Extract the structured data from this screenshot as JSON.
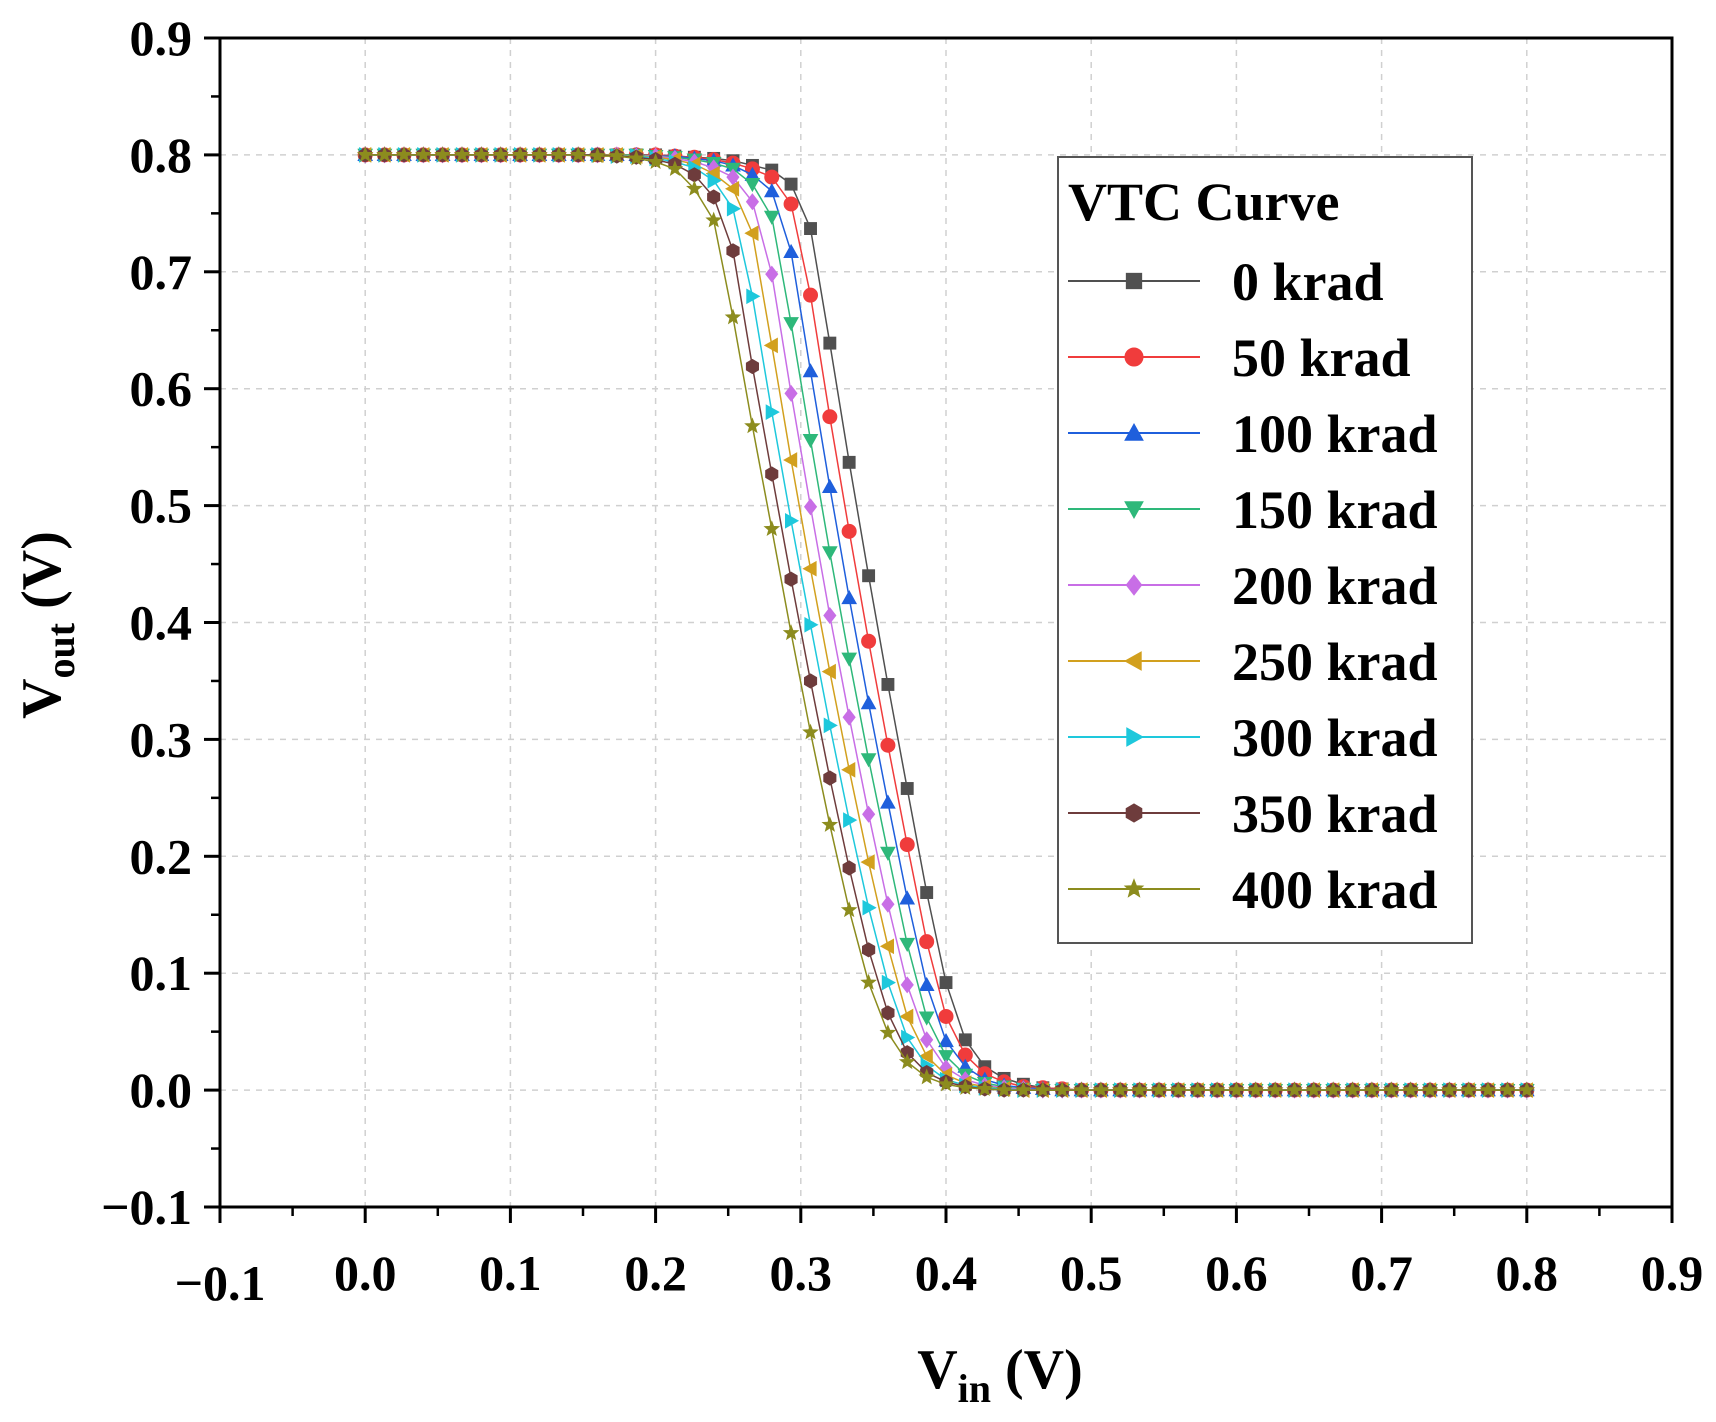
{
  "chart_data": {
    "type": "line",
    "title": "",
    "xlabel": {
      "main": "V",
      "sub": "in",
      "unit": "(V)"
    },
    "ylabel": {
      "main": "V",
      "sub": "out",
      "unit": "(V)"
    },
    "xlim": [
      -0.1,
      0.9
    ],
    "ylim": [
      -0.1,
      0.9
    ],
    "xticks": [
      -0.1,
      0.0,
      0.1,
      0.2,
      0.3,
      0.4,
      0.5,
      0.6,
      0.7,
      0.8,
      0.9
    ],
    "xtick_labels": [
      "−0.1",
      "0.0",
      "0.1",
      "0.2",
      "0.3",
      "0.4",
      "0.5",
      "0.6",
      "0.7",
      "0.8",
      "0.9"
    ],
    "yticks": [
      -0.1,
      0.0,
      0.1,
      0.2,
      0.3,
      0.4,
      0.5,
      0.6,
      0.7,
      0.8,
      0.9
    ],
    "ytick_labels": [
      "−0.1",
      "0.0",
      "0.1",
      "0.2",
      "0.3",
      "0.4",
      "0.5",
      "0.6",
      "0.7",
      "0.8",
      "0.9"
    ],
    "grid": true,
    "legend": {
      "title": "VTC Curve",
      "position": "top-right"
    },
    "x": [
      0.0,
      0.0133,
      0.0267,
      0.04,
      0.0533,
      0.0667,
      0.08,
      0.0933,
      0.1067,
      0.12,
      0.1333,
      0.1467,
      0.16,
      0.1733,
      0.1867,
      0.2,
      0.2133,
      0.2267,
      0.24,
      0.2533,
      0.2667,
      0.28,
      0.2933,
      0.3067,
      0.32,
      0.3333,
      0.3467,
      0.36,
      0.3733,
      0.3867,
      0.4,
      0.4133,
      0.4267,
      0.44,
      0.4533,
      0.4667,
      0.48,
      0.4933,
      0.5067,
      0.52,
      0.5333,
      0.5467,
      0.56,
      0.5733,
      0.5867,
      0.6,
      0.6133,
      0.6267,
      0.64,
      0.6533,
      0.6667,
      0.68,
      0.6933,
      0.7067,
      0.72,
      0.7333,
      0.7467,
      0.76,
      0.7733,
      0.7867,
      0.8
    ],
    "series": [
      {
        "name": "0 krad",
        "color": "#505050",
        "marker": "square",
        "values": [
          0.8,
          0.8,
          0.8,
          0.8,
          0.8,
          0.8,
          0.8,
          0.8,
          0.8,
          0.8,
          0.8,
          0.8,
          0.8,
          0.8,
          0.8,
          0.8,
          0.799,
          0.798,
          0.797,
          0.795,
          0.791,
          0.787,
          0.775,
          0.737,
          0.639,
          0.537,
          0.44,
          0.347,
          0.258,
          0.169,
          0.092,
          0.043,
          0.02,
          0.01,
          0.005,
          0.002,
          0.001,
          0.0,
          0.0,
          0.0,
          0.0,
          0.0,
          0.0,
          0.0,
          0.0,
          0.0,
          0.0,
          0.0,
          0.0,
          0.0,
          0.0,
          0.0,
          0.0,
          0.0,
          0.0,
          0.0,
          0.0,
          0.0,
          0.0,
          0.0,
          0.0
        ]
      },
      {
        "name": "50 krad",
        "color": "#f03c3c",
        "marker": "circle",
        "values": [
          0.8,
          0.8,
          0.8,
          0.8,
          0.8,
          0.8,
          0.8,
          0.8,
          0.8,
          0.8,
          0.8,
          0.8,
          0.8,
          0.8,
          0.8,
          0.8,
          0.799,
          0.798,
          0.796,
          0.793,
          0.788,
          0.781,
          0.758,
          0.68,
          0.576,
          0.478,
          0.384,
          0.295,
          0.21,
          0.127,
          0.063,
          0.03,
          0.014,
          0.007,
          0.003,
          0.002,
          0.001,
          0.0,
          0.0,
          0.0,
          0.0,
          0.0,
          0.0,
          0.0,
          0.0,
          0.0,
          0.0,
          0.0,
          0.0,
          0.0,
          0.0,
          0.0,
          0.0,
          0.0,
          0.0,
          0.0,
          0.0,
          0.0,
          0.0,
          0.0,
          0.0
        ]
      },
      {
        "name": "100 krad",
        "color": "#1f5fdc",
        "marker": "triangle-up",
        "values": [
          0.8,
          0.8,
          0.8,
          0.8,
          0.8,
          0.8,
          0.8,
          0.8,
          0.8,
          0.8,
          0.8,
          0.8,
          0.8,
          0.8,
          0.8,
          0.799,
          0.799,
          0.797,
          0.795,
          0.791,
          0.783,
          0.769,
          0.717,
          0.615,
          0.516,
          0.421,
          0.331,
          0.246,
          0.164,
          0.09,
          0.042,
          0.02,
          0.009,
          0.004,
          0.002,
          0.001,
          0.0,
          0.0,
          0.0,
          0.0,
          0.0,
          0.0,
          0.0,
          0.0,
          0.0,
          0.0,
          0.0,
          0.0,
          0.0,
          0.0,
          0.0,
          0.0,
          0.0,
          0.0,
          0.0,
          0.0,
          0.0,
          0.0,
          0.0,
          0.0,
          0.0
        ]
      },
      {
        "name": "150 krad",
        "color": "#2eb87a",
        "marker": "triangle-down",
        "values": [
          0.8,
          0.8,
          0.8,
          0.8,
          0.8,
          0.8,
          0.8,
          0.8,
          0.8,
          0.8,
          0.8,
          0.8,
          0.8,
          0.8,
          0.8,
          0.799,
          0.798,
          0.796,
          0.793,
          0.788,
          0.775,
          0.747,
          0.656,
          0.556,
          0.46,
          0.369,
          0.283,
          0.203,
          0.125,
          0.062,
          0.029,
          0.013,
          0.006,
          0.003,
          0.001,
          0.0,
          0.0,
          0.0,
          0.0,
          0.0,
          0.0,
          0.0,
          0.0,
          0.0,
          0.0,
          0.0,
          0.0,
          0.0,
          0.0,
          0.0,
          0.0,
          0.0,
          0.0,
          0.0,
          0.0,
          0.0,
          0.0,
          0.0,
          0.0,
          0.0,
          0.0
        ]
      },
      {
        "name": "200 krad",
        "color": "#c86ee6",
        "marker": "diamond",
        "values": [
          0.8,
          0.8,
          0.8,
          0.8,
          0.8,
          0.8,
          0.8,
          0.8,
          0.8,
          0.8,
          0.8,
          0.8,
          0.8,
          0.8,
          0.799,
          0.799,
          0.797,
          0.794,
          0.789,
          0.781,
          0.76,
          0.698,
          0.596,
          0.499,
          0.406,
          0.319,
          0.236,
          0.159,
          0.09,
          0.043,
          0.019,
          0.009,
          0.004,
          0.002,
          0.001,
          0.0,
          0.0,
          0.0,
          0.0,
          0.0,
          0.0,
          0.0,
          0.0,
          0.0,
          0.0,
          0.0,
          0.0,
          0.0,
          0.0,
          0.0,
          0.0,
          0.0,
          0.0,
          0.0,
          0.0,
          0.0,
          0.0,
          0.0,
          0.0,
          0.0,
          0.0
        ]
      },
      {
        "name": "250 krad",
        "color": "#d2a01e",
        "marker": "triangle-left",
        "values": [
          0.8,
          0.8,
          0.8,
          0.8,
          0.8,
          0.8,
          0.8,
          0.8,
          0.8,
          0.8,
          0.8,
          0.8,
          0.8,
          0.8,
          0.799,
          0.798,
          0.796,
          0.792,
          0.784,
          0.771,
          0.733,
          0.637,
          0.539,
          0.446,
          0.358,
          0.274,
          0.195,
          0.123,
          0.063,
          0.029,
          0.013,
          0.006,
          0.003,
          0.001,
          0.0,
          0.0,
          0.0,
          0.0,
          0.0,
          0.0,
          0.0,
          0.0,
          0.0,
          0.0,
          0.0,
          0.0,
          0.0,
          0.0,
          0.0,
          0.0,
          0.0,
          0.0,
          0.0,
          0.0,
          0.0,
          0.0,
          0.0,
          0.0,
          0.0,
          0.0,
          0.0
        ]
      },
      {
        "name": "300 krad",
        "color": "#1ec8dc",
        "marker": "triangle-right",
        "values": [
          0.8,
          0.8,
          0.8,
          0.8,
          0.8,
          0.8,
          0.8,
          0.8,
          0.8,
          0.8,
          0.8,
          0.8,
          0.8,
          0.799,
          0.799,
          0.797,
          0.794,
          0.789,
          0.778,
          0.754,
          0.679,
          0.58,
          0.487,
          0.398,
          0.312,
          0.231,
          0.156,
          0.092,
          0.045,
          0.021,
          0.009,
          0.004,
          0.002,
          0.001,
          0.0,
          0.0,
          0.0,
          0.0,
          0.0,
          0.0,
          0.0,
          0.0,
          0.0,
          0.0,
          0.0,
          0.0,
          0.0,
          0.0,
          0.0,
          0.0,
          0.0,
          0.0,
          0.0,
          0.0,
          0.0,
          0.0,
          0.0,
          0.0,
          0.0,
          0.0,
          0.0
        ]
      },
      {
        "name": "350 krad",
        "color": "#6e3c3c",
        "marker": "hexagon",
        "values": [
          0.8,
          0.8,
          0.8,
          0.8,
          0.8,
          0.8,
          0.8,
          0.8,
          0.8,
          0.8,
          0.8,
          0.8,
          0.8,
          0.799,
          0.798,
          0.796,
          0.792,
          0.783,
          0.764,
          0.718,
          0.619,
          0.527,
          0.437,
          0.35,
          0.267,
          0.19,
          0.12,
          0.066,
          0.032,
          0.015,
          0.007,
          0.003,
          0.001,
          0.0,
          0.0,
          0.0,
          0.0,
          0.0,
          0.0,
          0.0,
          0.0,
          0.0,
          0.0,
          0.0,
          0.0,
          0.0,
          0.0,
          0.0,
          0.0,
          0.0,
          0.0,
          0.0,
          0.0,
          0.0,
          0.0,
          0.0,
          0.0,
          0.0,
          0.0,
          0.0,
          0.0
        ]
      },
      {
        "name": "400 krad",
        "color": "#8c8c1e",
        "marker": "star",
        "values": [
          0.8,
          0.8,
          0.8,
          0.8,
          0.8,
          0.8,
          0.8,
          0.8,
          0.8,
          0.8,
          0.8,
          0.8,
          0.799,
          0.799,
          0.797,
          0.794,
          0.788,
          0.771,
          0.744,
          0.661,
          0.568,
          0.48,
          0.391,
          0.306,
          0.227,
          0.154,
          0.092,
          0.049,
          0.024,
          0.011,
          0.005,
          0.002,
          0.001,
          0.0,
          0.0,
          0.0,
          0.0,
          0.0,
          0.0,
          0.0,
          0.0,
          0.0,
          0.0,
          0.0,
          0.0,
          0.0,
          0.0,
          0.0,
          0.0,
          0.0,
          0.0,
          0.0,
          0.0,
          0.0,
          0.0,
          0.0,
          0.0,
          0.0,
          0.0,
          0.0,
          0.0
        ]
      }
    ]
  }
}
